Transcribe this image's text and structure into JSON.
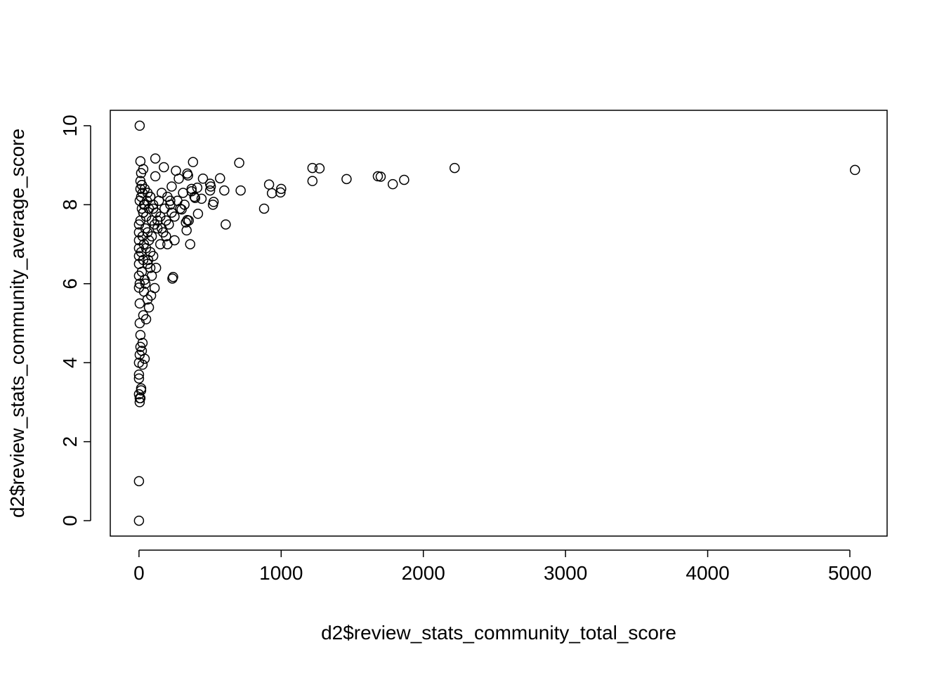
{
  "chart_data": {
    "type": "scatter",
    "x_label": "d2$review_stats_community_total_score",
    "y_label": "d2$review_stats_community_average_score",
    "xlim": [
      -202,
      5262
    ],
    "ylim": [
      -0.39,
      10.39
    ],
    "xticks": [
      0,
      1000,
      2000,
      3000,
      4000,
      5000
    ],
    "yticks": [
      0,
      2,
      4,
      6,
      8,
      10
    ],
    "point_color": "#000000",
    "x": [
      5036,
      2220,
      1865,
      1785,
      1700,
      1680,
      1460,
      1270,
      1220,
      1220,
      1000,
      995,
      935,
      915,
      880,
      715,
      705,
      610,
      600,
      570,
      525,
      520,
      505,
      500,
      500,
      450,
      440,
      415,
      410,
      395,
      380,
      370,
      360,
      345,
      340,
      335,
      340,
      330,
      300,
      280,
      260,
      250,
      240,
      235,
      230,
      200,
      175,
      115,
      115,
      110,
      80,
      60,
      40,
      25,
      15,
      10,
      5,
      0,
      0,
      5,
      10,
      15,
      30,
      0,
      0,
      0,
      0,
      0,
      5,
      5,
      10,
      10,
      5,
      0,
      0,
      0,
      0,
      5,
      15,
      20,
      25,
      30,
      35,
      0,
      0,
      0,
      5,
      5,
      10,
      10,
      15,
      15,
      20,
      20,
      25,
      25,
      30,
      30,
      35,
      40,
      40,
      45,
      50,
      50,
      55,
      60,
      60,
      70,
      70,
      80,
      80,
      90,
      90,
      100,
      100,
      110,
      120,
      130,
      140,
      150,
      150,
      160,
      170,
      180,
      190,
      200,
      210,
      220,
      230,
      250,
      270,
      290,
      310,
      320,
      350,
      370,
      390,
      20,
      40,
      60,
      80,
      100,
      130,
      160,
      190,
      220,
      30,
      50,
      70,
      90,
      120,
      45,
      65,
      85,
      10,
      20,
      35
    ],
    "values": [
      8.88,
      8.93,
      8.63,
      8.52,
      8.71,
      8.72,
      8.65,
      8.92,
      8.93,
      8.6,
      8.4,
      8.31,
      8.29,
      8.51,
      7.9,
      8.36,
      9.06,
      7.5,
      8.36,
      8.67,
      8.07,
      8.0,
      8.46,
      8.53,
      8.36,
      8.66,
      8.15,
      7.77,
      8.43,
      8.17,
      9.08,
      8.34,
      7.0,
      8.74,
      8.79,
      7.35,
      7.61,
      7.55,
      7.88,
      8.66,
      8.86,
      7.1,
      6.17,
      6.13,
      8.46,
      7.0,
      8.95,
      9.17,
      8.72,
      5.89,
      6.4,
      5.6,
      4.1,
      3.95,
      3.35,
      3.1,
      3.0,
      0.0,
      1.0,
      10.0,
      9.1,
      8.8,
      8.9,
      7.3,
      6.9,
      6.5,
      6.2,
      5.9,
      5.5,
      5.0,
      4.7,
      4.4,
      4.2,
      4.0,
      3.7,
      3.6,
      3.2,
      3.1,
      3.3,
      4.3,
      4.5,
      5.2,
      5.8,
      7.5,
      7.1,
      6.7,
      8.1,
      6.0,
      8.4,
      7.6,
      6.8,
      8.2,
      7.9,
      6.3,
      7.2,
      8.3,
      6.6,
      7.8,
      7.0,
      8.0,
      6.1,
      7.4,
      7.7,
      6.9,
      8.1,
      7.3,
      6.5,
      7.9,
      7.1,
      8.2,
      6.8,
      7.6,
      7.2,
      8.0,
      6.7,
      7.5,
      7.8,
      7.4,
      8.1,
      7.0,
      7.7,
      8.3,
      7.3,
      7.9,
      7.6,
      8.2,
      7.5,
      8.0,
      7.8,
      7.7,
      8.1,
      7.9,
      8.3,
      8.0,
      7.6,
      8.4,
      8.2,
      8.5,
      8.4,
      8.3,
      8.2,
      7.9,
      7.6,
      7.4,
      7.2,
      8.1,
      7.8,
      5.1,
      5.4,
      6.2,
      6.4,
      6.0,
      6.6,
      5.7,
      8.6,
      8.5,
      8.0
    ]
  }
}
